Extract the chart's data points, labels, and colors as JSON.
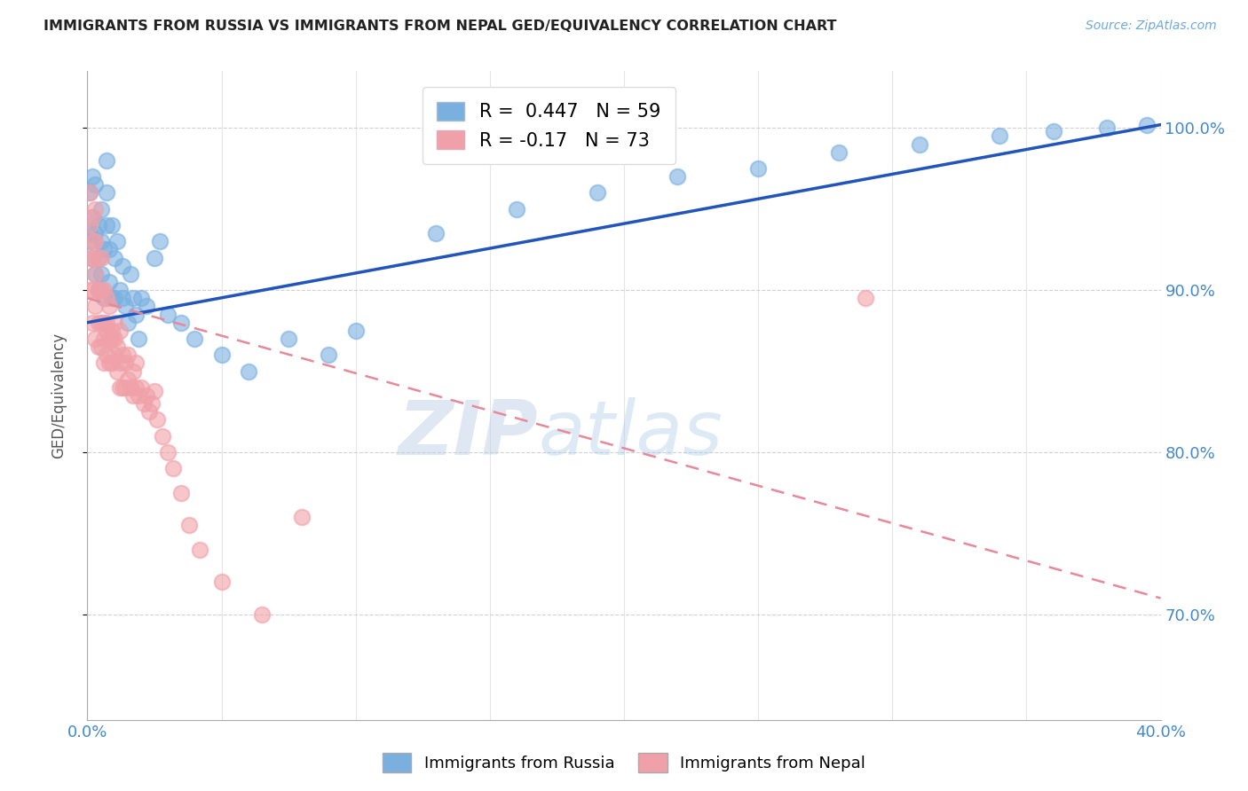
{
  "title": "IMMIGRANTS FROM RUSSIA VS IMMIGRANTS FROM NEPAL GED/EQUIVALENCY CORRELATION CHART",
  "source": "Source: ZipAtlas.com",
  "ylabel": "GED/Equivalency",
  "x_min": 0.0,
  "x_max": 0.4,
  "y_min": 0.635,
  "y_max": 1.035,
  "y_ticks_right": [
    0.7,
    0.8,
    0.9,
    1.0
  ],
  "y_tick_labels_right": [
    "70.0%",
    "80.0%",
    "90.0%",
    "100.0%"
  ],
  "russia_R": 0.447,
  "russia_N": 59,
  "nepal_R": -0.17,
  "nepal_N": 73,
  "russia_color": "#7ab0e0",
  "nepal_color": "#f0a0a8",
  "russia_line_color": "#2255bb",
  "nepal_line_color": "#e88898",
  "russia_line_y0": 0.88,
  "russia_line_y1": 1.002,
  "nepal_line_y0": 0.895,
  "nepal_line_y1": 0.71,
  "russia_x": [
    0.001,
    0.001,
    0.001,
    0.002,
    0.002,
    0.002,
    0.003,
    0.003,
    0.003,
    0.004,
    0.004,
    0.004,
    0.005,
    0.005,
    0.005,
    0.006,
    0.006,
    0.007,
    0.007,
    0.007,
    0.008,
    0.008,
    0.009,
    0.009,
    0.01,
    0.01,
    0.011,
    0.012,
    0.013,
    0.013,
    0.014,
    0.015,
    0.016,
    0.017,
    0.018,
    0.019,
    0.02,
    0.022,
    0.025,
    0.027,
    0.03,
    0.035,
    0.04,
    0.05,
    0.06,
    0.075,
    0.09,
    0.1,
    0.13,
    0.16,
    0.19,
    0.22,
    0.25,
    0.28,
    0.31,
    0.34,
    0.36,
    0.38,
    0.395
  ],
  "russia_y": [
    0.93,
    0.935,
    0.96,
    0.92,
    0.945,
    0.97,
    0.91,
    0.935,
    0.965,
    0.92,
    0.94,
    0.9,
    0.91,
    0.93,
    0.95,
    0.895,
    0.925,
    0.94,
    0.96,
    0.98,
    0.905,
    0.925,
    0.895,
    0.94,
    0.895,
    0.92,
    0.93,
    0.9,
    0.915,
    0.895,
    0.89,
    0.88,
    0.91,
    0.895,
    0.885,
    0.87,
    0.895,
    0.89,
    0.92,
    0.93,
    0.885,
    0.88,
    0.87,
    0.86,
    0.85,
    0.87,
    0.86,
    0.875,
    0.935,
    0.95,
    0.96,
    0.97,
    0.975,
    0.985,
    0.99,
    0.995,
    0.998,
    1.0,
    1.002
  ],
  "nepal_x": [
    0.001,
    0.001,
    0.001,
    0.001,
    0.002,
    0.002,
    0.002,
    0.002,
    0.002,
    0.003,
    0.003,
    0.003,
    0.003,
    0.003,
    0.004,
    0.004,
    0.004,
    0.004,
    0.005,
    0.005,
    0.005,
    0.005,
    0.006,
    0.006,
    0.006,
    0.006,
    0.007,
    0.007,
    0.007,
    0.007,
    0.008,
    0.008,
    0.008,
    0.009,
    0.009,
    0.009,
    0.01,
    0.01,
    0.01,
    0.011,
    0.011,
    0.012,
    0.012,
    0.012,
    0.013,
    0.013,
    0.014,
    0.014,
    0.015,
    0.015,
    0.016,
    0.017,
    0.017,
    0.018,
    0.018,
    0.019,
    0.02,
    0.021,
    0.022,
    0.023,
    0.024,
    0.025,
    0.026,
    0.028,
    0.03,
    0.032,
    0.035,
    0.038,
    0.042,
    0.05,
    0.065,
    0.08,
    0.29
  ],
  "nepal_y": [
    0.94,
    0.96,
    0.9,
    0.92,
    0.93,
    0.945,
    0.88,
    0.9,
    0.92,
    0.91,
    0.93,
    0.89,
    0.87,
    0.95,
    0.9,
    0.92,
    0.88,
    0.865,
    0.9,
    0.92,
    0.88,
    0.865,
    0.9,
    0.88,
    0.87,
    0.855,
    0.895,
    0.875,
    0.86,
    0.88,
    0.87,
    0.89,
    0.855,
    0.875,
    0.855,
    0.87,
    0.88,
    0.86,
    0.87,
    0.865,
    0.85,
    0.855,
    0.875,
    0.84,
    0.86,
    0.84,
    0.855,
    0.84,
    0.845,
    0.86,
    0.84,
    0.835,
    0.85,
    0.84,
    0.855,
    0.835,
    0.84,
    0.83,
    0.835,
    0.825,
    0.83,
    0.838,
    0.82,
    0.81,
    0.8,
    0.79,
    0.775,
    0.755,
    0.74,
    0.72,
    0.7,
    0.76,
    0.895
  ]
}
